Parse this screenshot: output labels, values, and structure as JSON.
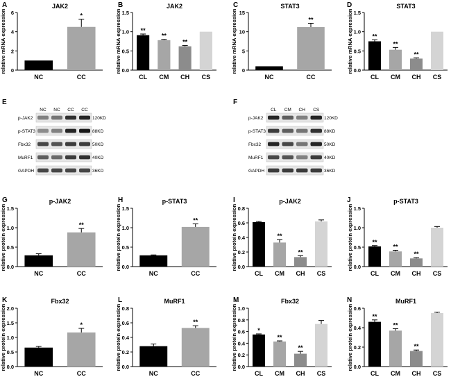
{
  "colors": {
    "black": "#000000",
    "dark_gray": "#555555",
    "mid_gray": "#8c8c8c",
    "light_gray": "#a6a6a6",
    "pale_gray": "#d4d4d4"
  },
  "blots": [
    {
      "letter": "E",
      "lanes": [
        "NC",
        "NC",
        "CC",
        "CC"
      ],
      "rows": [
        {
          "label": "p-JAK2",
          "size": "120KD"
        },
        {
          "label": "p-STAT3",
          "size": "88KD"
        },
        {
          "label": "Fbx32",
          "size": "50KD"
        },
        {
          "label": "MuRF1",
          "size": "40KD"
        },
        {
          "label": "GAPDH",
          "size": "36KD"
        }
      ]
    },
    {
      "letter": "F",
      "lanes": [
        "CL",
        "CM",
        "CH",
        "CS"
      ],
      "rows": [
        {
          "label": "p-JAK2",
          "size": "120KD"
        },
        {
          "label": "p-STAT3",
          "size": "88KD"
        },
        {
          "label": "Fbx32",
          "size": "50KD"
        },
        {
          "label": "MuRF1",
          "size": "40KD"
        },
        {
          "label": "GAPDH",
          "size": "36KD"
        }
      ]
    }
  ],
  "chart_data": [
    {
      "letter": "A",
      "type": "bar",
      "title": "JAK2",
      "ylabel": "relative mRNA expression",
      "categories": [
        "NC",
        "CC"
      ],
      "values": [
        1.0,
        4.5
      ],
      "errors": [
        0,
        0.8
      ],
      "sig": [
        "",
        "*"
      ],
      "ylim": [
        0,
        6
      ],
      "yticks": [
        0,
        2,
        4,
        6
      ],
      "colors": [
        "#000000",
        "#a6a6a6"
      ]
    },
    {
      "letter": "B",
      "type": "bar",
      "title": "JAK2",
      "ylabel": "relative mRNA expression",
      "categories": [
        "CL",
        "CM",
        "CH",
        "CS"
      ],
      "values": [
        0.91,
        0.78,
        0.62,
        1.0
      ],
      "errors": [
        0.03,
        0.02,
        0.02,
        0
      ],
      "sig": [
        "**",
        "**",
        "**",
        ""
      ],
      "ylim": [
        0,
        1.5
      ],
      "yticks": [
        0.0,
        0.5,
        1.0,
        1.5
      ],
      "colors": [
        "#000000",
        "#a6a6a6",
        "#8c8c8c",
        "#d4d4d4"
      ]
    },
    {
      "letter": "C",
      "type": "bar",
      "title": "STAT3",
      "ylabel": "relative mRNA expression",
      "categories": [
        "NC",
        "CC"
      ],
      "values": [
        1.0,
        11.2
      ],
      "errors": [
        0,
        1.0
      ],
      "sig": [
        "",
        "**"
      ],
      "ylim": [
        0,
        15
      ],
      "yticks": [
        0,
        5,
        10,
        15
      ],
      "colors": [
        "#000000",
        "#a6a6a6"
      ]
    },
    {
      "letter": "D",
      "type": "bar",
      "title": "STAT3",
      "ylabel": "relative mRNA expression",
      "categories": [
        "CL",
        "CM",
        "CH",
        "CS"
      ],
      "values": [
        0.75,
        0.53,
        0.3,
        1.0
      ],
      "errors": [
        0.04,
        0.06,
        0.02,
        0
      ],
      "sig": [
        "**",
        "**",
        "**",
        ""
      ],
      "ylim": [
        0,
        1.5
      ],
      "yticks": [
        0.0,
        0.5,
        1.0,
        1.5
      ],
      "colors": [
        "#000000",
        "#a6a6a6",
        "#8c8c8c",
        "#d4d4d4"
      ]
    },
    {
      "letter": "G",
      "type": "bar",
      "title": "p-JAK2",
      "ylabel": "relative protein expression",
      "categories": [
        "NC",
        "CC"
      ],
      "values": [
        0.29,
        0.88
      ],
      "errors": [
        0.04,
        0.1
      ],
      "sig": [
        "",
        "**"
      ],
      "ylim": [
        0,
        1.5
      ],
      "yticks": [
        0.0,
        0.5,
        1.0,
        1.5
      ],
      "colors": [
        "#000000",
        "#a6a6a6"
      ]
    },
    {
      "letter": "H",
      "type": "bar",
      "title": "p-STAT3",
      "ylabel": "relative protein expression",
      "categories": [
        "NC",
        "CC"
      ],
      "values": [
        0.29,
        1.02
      ],
      "errors": [
        0.01,
        0.08
      ],
      "sig": [
        "",
        "**"
      ],
      "ylim": [
        0,
        1.5
      ],
      "yticks": [
        0.0,
        0.5,
        1.0,
        1.5
      ],
      "colors": [
        "#000000",
        "#a6a6a6"
      ]
    },
    {
      "letter": "I",
      "type": "bar",
      "title": "p-JAK2",
      "ylabel": "relative protein expression",
      "categories": [
        "CL",
        "CM",
        "CH",
        "CS"
      ],
      "values": [
        0.61,
        0.33,
        0.13,
        0.62
      ],
      "errors": [
        0.01,
        0.04,
        0.02,
        0.02
      ],
      "sig": [
        "",
        "**",
        "**",
        ""
      ],
      "ylim": [
        0,
        0.8
      ],
      "yticks": [
        0.0,
        0.2,
        0.4,
        0.6,
        0.8
      ],
      "colors": [
        "#000000",
        "#a6a6a6",
        "#8c8c8c",
        "#d4d4d4"
      ]
    },
    {
      "letter": "J",
      "type": "bar",
      "title": "p-STAT3",
      "ylabel": "relative protein expression",
      "categories": [
        "CL",
        "CM",
        "CH",
        "CS"
      ],
      "values": [
        0.52,
        0.39,
        0.21,
        1.0
      ],
      "errors": [
        0.02,
        0.03,
        0.02,
        0.03
      ],
      "sig": [
        "**",
        "**",
        "**",
        ""
      ],
      "ylim": [
        0,
        1.5
      ],
      "yticks": [
        0.0,
        0.5,
        1.0,
        1.5
      ],
      "colors": [
        "#000000",
        "#a6a6a6",
        "#8c8c8c",
        "#d4d4d4"
      ]
    },
    {
      "letter": "K",
      "type": "bar",
      "title": "Fbx32",
      "ylabel": "relative protein expression",
      "categories": [
        "NC",
        "CC"
      ],
      "values": [
        0.65,
        1.17
      ],
      "errors": [
        0.04,
        0.14
      ],
      "sig": [
        "",
        "*"
      ],
      "ylim": [
        0,
        2.0
      ],
      "yticks": [
        0.0,
        0.5,
        1.0,
        1.5,
        2.0
      ],
      "colors": [
        "#000000",
        "#a6a6a6"
      ]
    },
    {
      "letter": "L",
      "type": "bar",
      "title": "MuRF1",
      "ylabel": "relative protein expression",
      "categories": [
        "NC",
        "CC"
      ],
      "values": [
        0.28,
        0.53
      ],
      "errors": [
        0.03,
        0.03
      ],
      "sig": [
        "",
        "**"
      ],
      "ylim": [
        0,
        0.8
      ],
      "yticks": [
        0.0,
        0.2,
        0.4,
        0.6,
        0.8
      ],
      "colors": [
        "#000000",
        "#a6a6a6"
      ]
    },
    {
      "letter": "M",
      "type": "bar",
      "title": "Fbx32",
      "ylabel": "relative protein expression",
      "categories": [
        "CL",
        "CM",
        "CH",
        "CS"
      ],
      "values": [
        0.55,
        0.43,
        0.22,
        0.73
      ],
      "errors": [
        0.01,
        0.01,
        0.04,
        0.06
      ],
      "sig": [
        "*",
        "**",
        "**",
        ""
      ],
      "ylim": [
        0,
        1.0
      ],
      "yticks": [
        0.0,
        0.2,
        0.4,
        0.6,
        0.8,
        1.0
      ],
      "colors": [
        "#000000",
        "#a6a6a6",
        "#8c8c8c",
        "#d4d4d4"
      ]
    },
    {
      "letter": "N",
      "type": "bar",
      "title": "MuRF1",
      "ylabel": "relative protein expression",
      "categories": [
        "CL",
        "CM",
        "CH",
        "CS"
      ],
      "values": [
        0.46,
        0.37,
        0.16,
        0.55
      ],
      "errors": [
        0.02,
        0.02,
        0.01,
        0.01
      ],
      "sig": [
        "**",
        "**",
        "**",
        ""
      ],
      "ylim": [
        0,
        0.6
      ],
      "yticks": [
        0.0,
        0.2,
        0.4,
        0.6
      ],
      "colors": [
        "#000000",
        "#a6a6a6",
        "#8c8c8c",
        "#d4d4d4"
      ]
    }
  ]
}
